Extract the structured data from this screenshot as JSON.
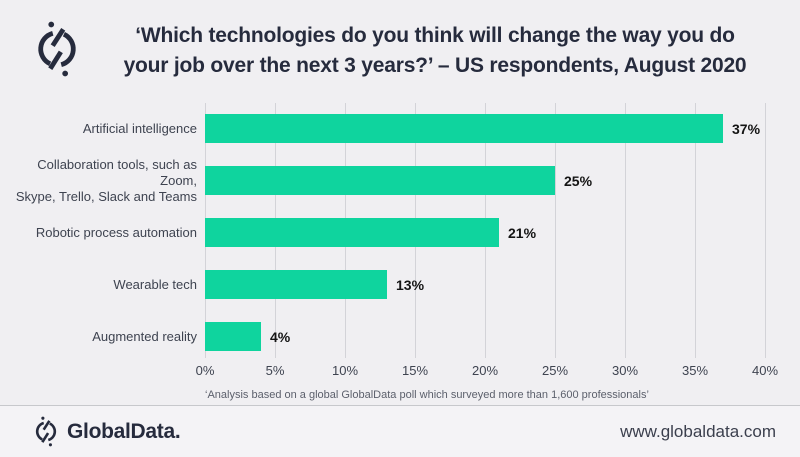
{
  "header": {
    "title_lines": [
      "‘Which technologies do you think will change the way you do",
      "your job over the next 3 years?’ – US respondents, August 2020"
    ]
  },
  "chart_data": {
    "type": "bar",
    "orientation": "horizontal",
    "title": "‘Which technologies do you think will change the way you do your job over the next 3 years?’ – US respondents, August 2020",
    "categories": [
      "Artificial intelligence",
      "Collaboration tools, such as Zoom,\nSkype, Trello, Slack and Teams",
      "Robotic process automation",
      "Wearable tech",
      "Augmented reality"
    ],
    "values": [
      37,
      25,
      21,
      13,
      4
    ],
    "value_labels": [
      "37%",
      "25%",
      "21%",
      "13%",
      "4%"
    ],
    "xlim": [
      0,
      40
    ],
    "x_ticks": [
      "0%",
      "5%",
      "10%",
      "15%",
      "20%",
      "25%",
      "30%",
      "35%",
      "40%"
    ],
    "grid": true,
    "legend": "none",
    "bar_color": "#0fd49e"
  },
  "footnote": "‘Analysis based on a global GlobalData poll which surveyed more than 1,600 professionals’",
  "footer": {
    "brand": "GlobalData.",
    "website": "www.globaldata.com"
  },
  "colors": {
    "accent_green": "#0fd49e",
    "brand_navy": "#262b3d",
    "page_background": "#f0eff2"
  }
}
